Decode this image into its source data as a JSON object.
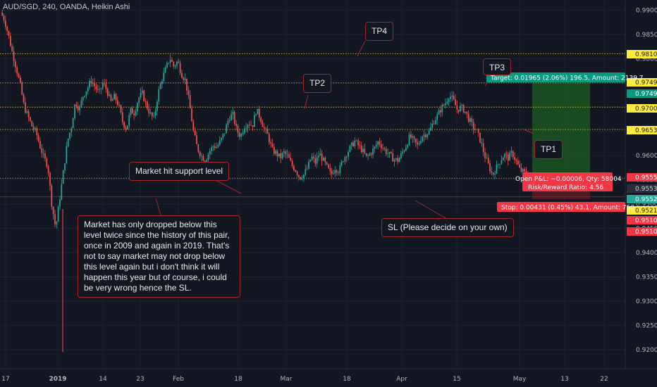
{
  "header": {
    "title": "AUD/SGD, 240, OANDA, Heikin Ashi"
  },
  "colors": {
    "background": "#131722",
    "up": "#26a69a",
    "down": "#ef5350",
    "target_zone": "#1b5e20",
    "target_label": "#089981",
    "stop_label": "#f23645"
  },
  "annotations": {
    "tp4": "TP4",
    "tp3": "TP3",
    "tp2": "TP2",
    "tp1": "TP1",
    "support": "Market hit support level",
    "history_note": "Market has only dropped below this level twice since the history of this pair, once in 2009 and again in 2019. That's not to say market may not drop below this level again but i don't think it will happen this year but of course, i could be very wrong hence the SL.",
    "sl_note": "SL (Please decide on your own)"
  },
  "position": {
    "target_text": "Target: 0.01965 (2.06%) 196.5, Amount: 2139.7",
    "open_pl_text": "Open P&L: −0.00006, Qty: 58004",
    "rr_text": "Risk/Reward Ratio: 4.56",
    "stop_text": "Stop: 0.00431 (0.45%) 43.1, Amount: 750"
  },
  "chart_data": {
    "type": "candlestick",
    "title": "AUD/SGD, 240, OANDA, Heikin Ashi",
    "xlabel": "",
    "ylabel": "",
    "ylim": [
      0.9178,
      0.9918
    ],
    "grid": true,
    "x_ticks": [
      "17",
      "2019",
      "14",
      "23",
      "Feb",
      "18",
      "Mar",
      "18",
      "Apr",
      "15",
      "May",
      "13",
      "22"
    ],
    "y_ticks": [
      "0.99000",
      "0.98500",
      "0.98000",
      "0.97500",
      "0.97000",
      "0.96500",
      "0.96000",
      "0.95500",
      "0.95000",
      "0.94500",
      "0.94000",
      "0.93500",
      "0.93000",
      "0.92500",
      "0.92000"
    ],
    "horizontal_levels": [
      {
        "label": "TP4",
        "value": 0.98102
      },
      {
        "label": "TP3",
        "value": 0.97499
      },
      {
        "label": "TP2",
        "value": 0.97001
      },
      {
        "label": "TP1",
        "value": 0.96538
      },
      {
        "label": "support",
        "value": 0.95534
      }
    ],
    "price_tags": [
      {
        "value": 0.98102,
        "text": "0.98102",
        "kind": "level"
      },
      {
        "value": 0.97499,
        "text": "0.97499",
        "kind": "level"
      },
      {
        "value": 0.97499,
        "text": "0.97499",
        "kind": "target"
      },
      {
        "value": 0.97001,
        "text": "0.97001",
        "kind": "level"
      },
      {
        "value": 0.96538,
        "text": "0.96538",
        "kind": "level"
      },
      {
        "value": 0.95552,
        "text": "0.95552",
        "kind": "entry"
      },
      {
        "value": 0.95534,
        "text": "0.95534",
        "kind": "neutral"
      },
      {
        "value": 0.95528,
        "text": "0.95528",
        "kind": "last"
      },
      {
        "value": 0.9521,
        "text": "0.95210",
        "kind": "level"
      },
      {
        "value": 0.95103,
        "text": "0.95103",
        "kind": "stop"
      },
      {
        "value": 0.95103,
        "text": "0.95103",
        "kind": "stop"
      }
    ],
    "position": {
      "entry": 0.95534,
      "target": 0.97499,
      "stop": 0.95103
    },
    "series": [
      {
        "close_path": [
          0.9895,
          0.988,
          0.9848,
          0.9812,
          0.978,
          0.9745,
          0.97,
          0.968,
          0.966,
          0.9648,
          0.962,
          0.9595,
          0.958,
          0.95,
          0.945,
          0.951,
          0.957,
          0.963,
          0.966,
          0.9712,
          0.9695,
          0.9725,
          0.9738,
          0.9755,
          0.9742,
          0.9728,
          0.975,
          0.9735,
          0.971,
          0.9722,
          0.9703,
          0.967,
          0.9655,
          0.9693,
          0.9688,
          0.9718,
          0.9728,
          0.9705,
          0.9686,
          0.9675,
          0.9728,
          0.9758,
          0.9779,
          0.9802,
          0.9784,
          0.9795,
          0.9768,
          0.9755,
          0.9705,
          0.965,
          0.9615,
          0.96,
          0.959,
          0.9608,
          0.962,
          0.9618,
          0.9632,
          0.965,
          0.9678,
          0.9685,
          0.9652,
          0.964,
          0.9662,
          0.9668,
          0.9662,
          0.9695,
          0.9678,
          0.9655,
          0.964,
          0.9612,
          0.9605,
          0.9596,
          0.9606,
          0.9598,
          0.958,
          0.957,
          0.9555,
          0.956,
          0.9575,
          0.9598,
          0.9585,
          0.9605,
          0.959,
          0.9575,
          0.956,
          0.9575,
          0.9568,
          0.9592,
          0.9605,
          0.9618,
          0.963,
          0.962,
          0.961,
          0.9596,
          0.9605,
          0.9615,
          0.963,
          0.9618,
          0.9608,
          0.96,
          0.9592,
          0.959,
          0.9605,
          0.962,
          0.964,
          0.963,
          0.962,
          0.964,
          0.9645,
          0.965,
          0.967,
          0.9682,
          0.9698,
          0.9708,
          0.9725,
          0.9715,
          0.9695,
          0.97,
          0.9692,
          0.9675,
          0.966,
          0.965,
          0.963,
          0.96,
          0.958,
          0.956,
          0.9575,
          0.959,
          0.9602,
          0.9595,
          0.9606,
          0.9589,
          0.957,
          0.9565,
          0.9558
        ]
      }
    ]
  }
}
